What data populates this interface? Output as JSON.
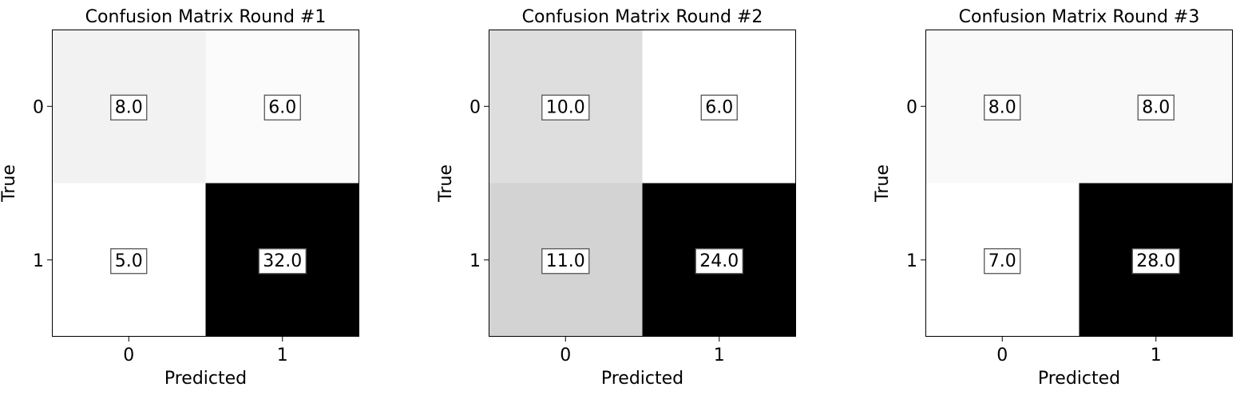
{
  "chart_data": [
    {
      "type": "heatmap",
      "title": "Confusion Matrix Round #1",
      "xlabel": "Predicted",
      "ylabel": "True",
      "x_tick_labels": [
        "0",
        "1"
      ],
      "y_tick_labels": [
        "0",
        "1"
      ],
      "values": [
        [
          8.0,
          6.0
        ],
        [
          5.0,
          32.0
        ]
      ],
      "value_labels": [
        [
          "8.0",
          "6.0"
        ],
        [
          "5.0",
          "32.0"
        ]
      ],
      "colormap": "Greys"
    },
    {
      "type": "heatmap",
      "title": "Confusion Matrix Round #2",
      "xlabel": "Predicted",
      "ylabel": "True",
      "x_tick_labels": [
        "0",
        "1"
      ],
      "y_tick_labels": [
        "0",
        "1"
      ],
      "values": [
        [
          10.0,
          6.0
        ],
        [
          11.0,
          24.0
        ]
      ],
      "value_labels": [
        [
          "10.0",
          "6.0"
        ],
        [
          "11.0",
          "24.0"
        ]
      ],
      "colormap": "Greys"
    },
    {
      "type": "heatmap",
      "title": "Confusion Matrix Round #3",
      "xlabel": "Predicted",
      "ylabel": "True",
      "x_tick_labels": [
        "0",
        "1"
      ],
      "y_tick_labels": [
        "0",
        "1"
      ],
      "values": [
        [
          8.0,
          8.0
        ],
        [
          7.0,
          28.0
        ]
      ],
      "value_labels": [
        [
          "8.0",
          "8.0"
        ],
        [
          "7.0",
          "28.0"
        ]
      ],
      "colormap": "Greys"
    }
  ]
}
